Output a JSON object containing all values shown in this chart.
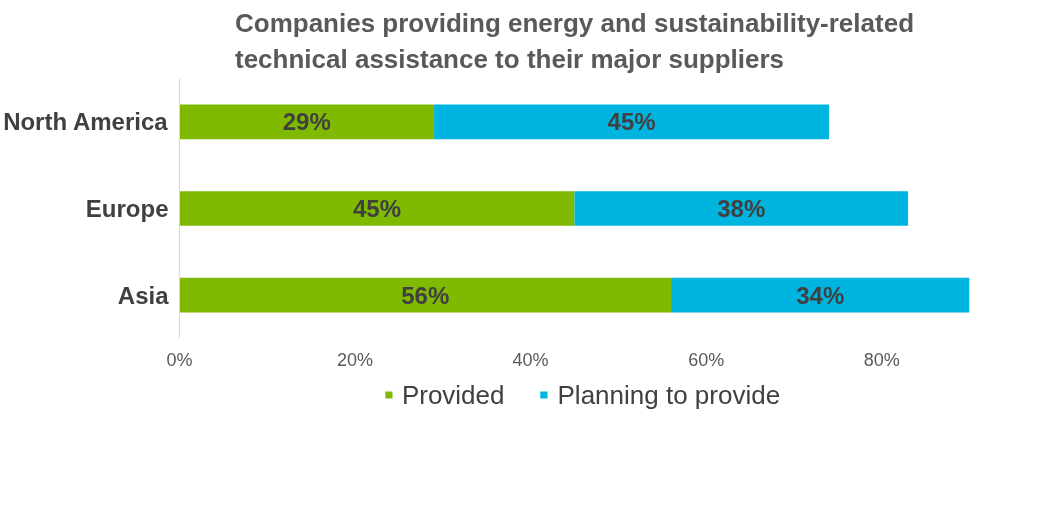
{
  "chart_data": {
    "type": "bar",
    "orientation": "horizontal",
    "stacked": true,
    "title": "Companies providing energy and sustainability-related technical assistance to their major suppliers",
    "categories": [
      "North America",
      "Europe",
      "Asia"
    ],
    "series": [
      {
        "name": "Provided",
        "color": "#7fba00",
        "values": [
          29,
          45,
          56
        ],
        "value_labels": [
          "29%",
          "45%",
          "56%"
        ]
      },
      {
        "name": "Planning to provide",
        "color": "#00b4e0",
        "values": [
          45,
          38,
          34
        ],
        "value_labels": [
          "45%",
          "38%",
          "34%"
        ]
      }
    ],
    "xlim": [
      0,
      90
    ],
    "xticks": [
      {
        "value": 0,
        "label": "0%"
      },
      {
        "value": 20,
        "label": "20%"
      },
      {
        "value": 40,
        "label": "40%"
      },
      {
        "value": 60,
        "label": "60%"
      },
      {
        "value": 80,
        "label": "80%"
      }
    ],
    "grid": false,
    "legend": "bottom"
  }
}
